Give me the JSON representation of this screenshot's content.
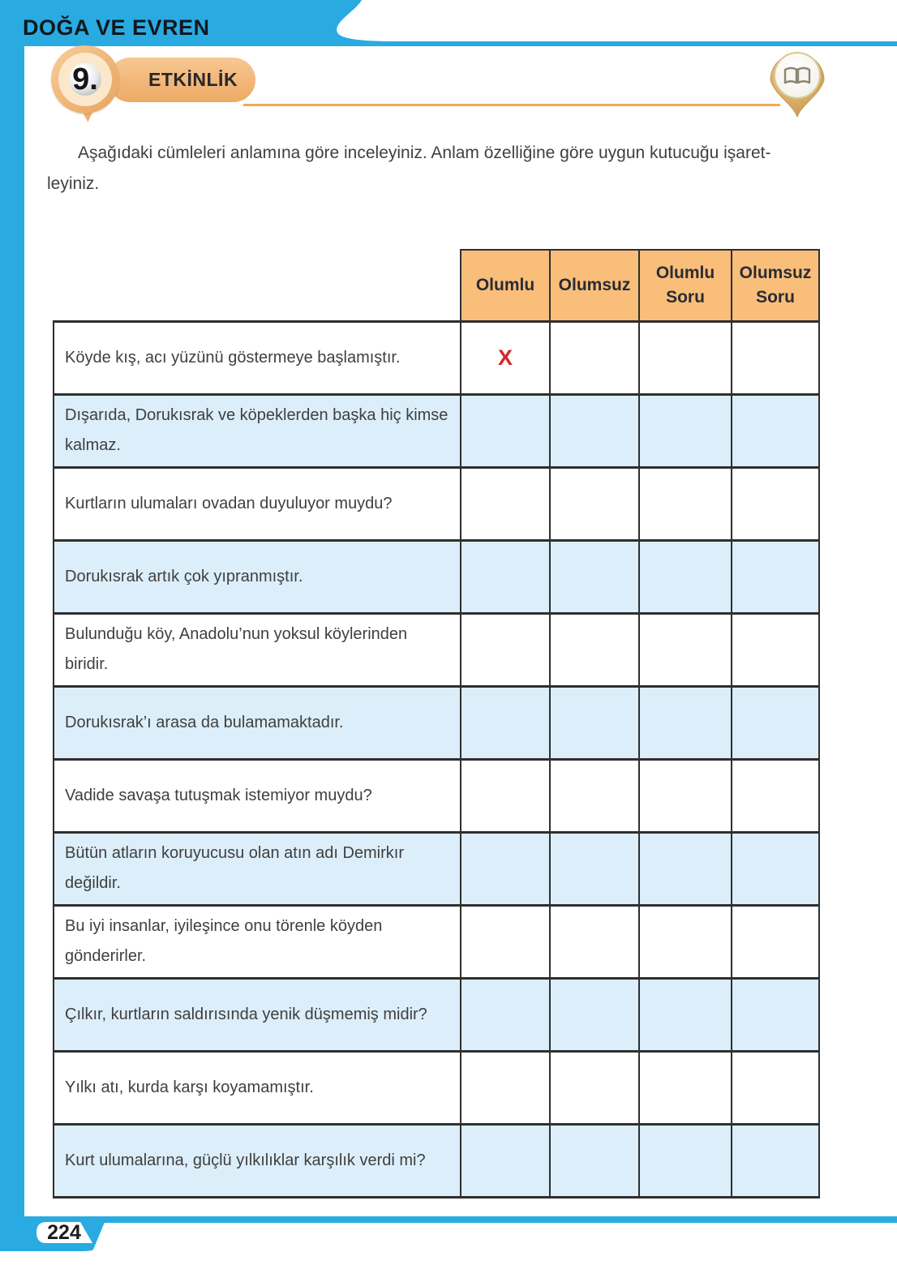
{
  "header": {
    "section_title": "DOĞA VE EVREN",
    "activity_number": "9.",
    "activity_label": "ETKİNLİK",
    "icon": "open-book-icon"
  },
  "instruction": {
    "line1": "Aşağıdaki cümleleri anlamına göre inceleyiniz. Anlam özelliğine göre uygun kutucuğu işaret-",
    "line2": "leyiniz."
  },
  "table": {
    "columns": [
      "Olumlu",
      "Olumsuz",
      "Olumlu Soru",
      "Olumsuz Soru"
    ],
    "rows": [
      {
        "text": "Köyde kış, acı yüzünü göstermeye başlamıştır.",
        "marks": [
          "X",
          "",
          "",
          ""
        ]
      },
      {
        "text": "Dışarıda, Dorukısrak ve köpeklerden başka hiç kimse kalmaz.",
        "marks": [
          "",
          "",
          "",
          ""
        ]
      },
      {
        "text": "Kurtların ulumaları ovadan duyuluyor muydu?",
        "marks": [
          "",
          "",
          "",
          ""
        ]
      },
      {
        "text": "Dorukısrak artık çok yıpranmıştır.",
        "marks": [
          "",
          "",
          "",
          ""
        ]
      },
      {
        "text": "Bulunduğu köy, Anadolu’nun yoksul köylerinden biridir.",
        "marks": [
          "",
          "",
          "",
          ""
        ]
      },
      {
        "text": "Dorukısrak’ı arasa da bulamamaktadır.",
        "marks": [
          "",
          "",
          "",
          ""
        ]
      },
      {
        "text": "Vadide savaşa tutuşmak istemiyor muydu?",
        "marks": [
          "",
          "",
          "",
          ""
        ]
      },
      {
        "text": "Bütün atların koruyucusu olan atın adı Demirkır değildir.",
        "marks": [
          "",
          "",
          "",
          ""
        ]
      },
      {
        "text": "Bu iyi insanlar, iyileşince onu törenle köyden gönderirler.",
        "marks": [
          "",
          "",
          "",
          ""
        ]
      },
      {
        "text": "Çılkır, kurtların saldırısında yenik düşmemiş midir?",
        "marks": [
          "",
          "",
          "",
          ""
        ]
      },
      {
        "text": "Yılkı atı, kurda karşı koyamamıştır.",
        "marks": [
          "",
          "",
          "",
          ""
        ]
      },
      {
        "text": "Kurt ulumalarına, güçlü yılkılıklar karşılık verdi mi?",
        "marks": [
          "",
          "",
          "",
          ""
        ]
      }
    ]
  },
  "footer": {
    "page_number": "224"
  },
  "colors": {
    "accent_cyan": "#29ABE2",
    "header_orange": "#F8BE7A",
    "row_blue": "#DCEEFA",
    "mark_red": "#D7262B",
    "rule_orange": "#F3A950"
  }
}
